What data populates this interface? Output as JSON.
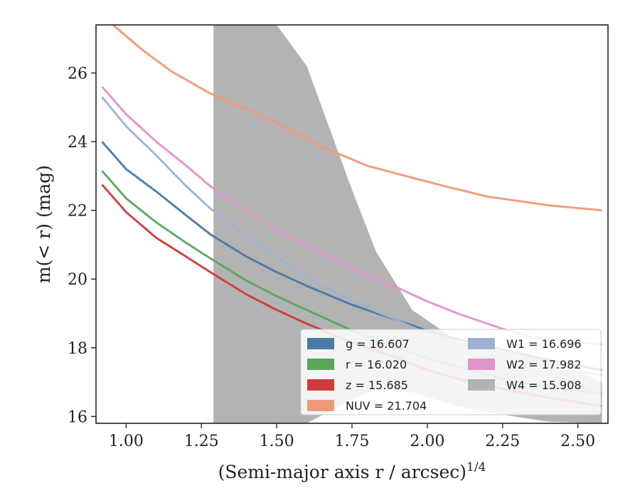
{
  "chart_data": {
    "type": "line",
    "xlabel": "(Semi-major axis r / arcsec)",
    "xlabel_superscript": "1/4",
    "ylabel": "m(< r) (mag)",
    "xlim": [
      0.9,
      2.6
    ],
    "ylim": [
      27.4,
      15.8
    ],
    "y_inverted": true,
    "x_ticks": [
      "1.00",
      "1.25",
      "1.50",
      "1.75",
      "2.00",
      "2.25",
      "2.50"
    ],
    "y_ticks": [
      "16",
      "18",
      "20",
      "22",
      "24",
      "26"
    ],
    "legend_position": "lower-right",
    "grid": false,
    "series": [
      {
        "name": "g = 16.607",
        "color": "#4a7aa7",
        "x": [
          0.92,
          1.0,
          1.1,
          1.2,
          1.28,
          1.4,
          1.5,
          1.6,
          1.75,
          1.9,
          2.0,
          2.1,
          2.25,
          2.4,
          2.58
        ],
        "y": [
          24.0,
          23.2,
          22.55,
          21.85,
          21.3,
          20.65,
          20.2,
          19.8,
          19.25,
          18.8,
          18.5,
          18.25,
          17.95,
          17.65,
          17.35
        ]
      },
      {
        "name": "r = 16.020",
        "color": "#5ba55b",
        "x": [
          0.92,
          1.0,
          1.1,
          1.2,
          1.28,
          1.4,
          1.5,
          1.6,
          1.75,
          1.9,
          2.0,
          2.1,
          2.25,
          2.4,
          2.58
        ],
        "y": [
          23.15,
          22.35,
          21.65,
          21.05,
          20.6,
          19.95,
          19.5,
          19.1,
          18.5,
          18.0,
          17.7,
          17.45,
          17.1,
          16.85,
          16.65
        ]
      },
      {
        "name": "z = 15.685",
        "color": "#cf3b3b",
        "x": [
          0.92,
          1.0,
          1.1,
          1.2,
          1.28,
          1.4,
          1.5,
          1.6,
          1.75,
          1.9,
          2.0,
          2.1,
          2.25,
          2.4,
          2.58
        ],
        "y": [
          22.75,
          21.95,
          21.2,
          20.65,
          20.2,
          19.55,
          19.1,
          18.7,
          18.15,
          17.7,
          17.35,
          17.1,
          16.8,
          16.55,
          16.3
        ]
      },
      {
        "name": "NUV = 21.704",
        "color": "#ec9a78",
        "x": [
          0.93,
          1.05,
          1.15,
          1.28,
          1.4,
          1.5,
          1.65,
          1.8,
          1.95,
          2.06,
          2.2,
          2.4,
          2.58
        ],
        "y": [
          27.6,
          26.7,
          26.05,
          25.4,
          24.95,
          24.55,
          23.85,
          23.3,
          22.95,
          22.7,
          22.4,
          22.15,
          22.0
        ]
      },
      {
        "name": "W1 = 16.696",
        "color": "#9fb1d2",
        "x": [
          0.92,
          1.0,
          1.1,
          1.2,
          1.28,
          1.4,
          1.5,
          1.6,
          1.75,
          1.9,
          2.0,
          2.1,
          2.25,
          2.4,
          2.58
        ],
        "y": [
          25.3,
          24.45,
          23.6,
          22.7,
          22.05,
          21.25,
          20.65,
          20.05,
          19.35,
          18.8,
          18.4,
          18.1,
          17.75,
          17.45,
          17.2
        ]
      },
      {
        "name": "W2 = 17.982",
        "color": "#e093c8",
        "x": [
          0.92,
          1.0,
          1.1,
          1.2,
          1.28,
          1.4,
          1.5,
          1.6,
          1.75,
          1.9,
          2.0,
          2.1,
          2.25,
          2.35,
          2.45,
          2.58
        ],
        "y": [
          25.6,
          24.8,
          24.0,
          23.3,
          22.7,
          22.0,
          21.45,
          21.0,
          20.3,
          19.75,
          19.35,
          19.0,
          18.55,
          18.3,
          18.2,
          18.1
        ]
      },
      {
        "name": "W4 = 15.908",
        "color": "#b3b3b3",
        "x": [
          1.29,
          1.4,
          1.5,
          1.6,
          1.75,
          1.83,
          1.95,
          2.1,
          2.25,
          2.4,
          2.58
        ],
        "y_upper": [
          15.8,
          15.8,
          15.8,
          15.8,
          16.5,
          16.8,
          16.7,
          16.3,
          16.05,
          15.85,
          15.8
        ],
        "y_lower": [
          27.4,
          27.4,
          27.4,
          26.2,
          22.6,
          20.8,
          19.1,
          18.2,
          17.9,
          17.7,
          17.0
        ]
      }
    ]
  }
}
